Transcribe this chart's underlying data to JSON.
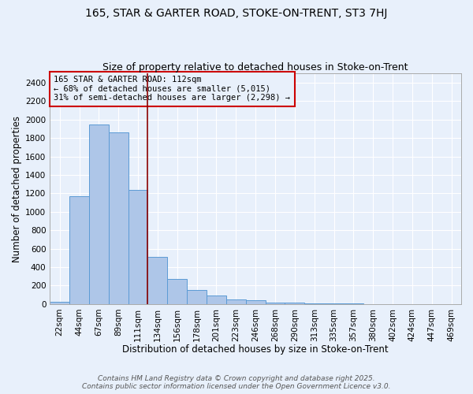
{
  "title": "165, STAR & GARTER ROAD, STOKE-ON-TRENT, ST3 7HJ",
  "subtitle": "Size of property relative to detached houses in Stoke-on-Trent",
  "xlabel": "Distribution of detached houses by size in Stoke-on-Trent",
  "ylabel": "Number of detached properties",
  "bin_labels": [
    "22sqm",
    "44sqm",
    "67sqm",
    "89sqm",
    "111sqm",
    "134sqm",
    "156sqm",
    "178sqm",
    "201sqm",
    "223sqm",
    "246sqm",
    "268sqm",
    "290sqm",
    "313sqm",
    "335sqm",
    "357sqm",
    "380sqm",
    "402sqm",
    "424sqm",
    "447sqm",
    "469sqm"
  ],
  "bar_heights": [
    25,
    1170,
    1950,
    1860,
    1240,
    510,
    270,
    155,
    90,
    50,
    40,
    20,
    15,
    10,
    5,
    3,
    2,
    2,
    1,
    1,
    0
  ],
  "bar_color": "#aec6e8",
  "bar_edge_color": "#5b9bd5",
  "ylim": [
    0,
    2500
  ],
  "yticks": [
    0,
    200,
    400,
    600,
    800,
    1000,
    1200,
    1400,
    1600,
    1800,
    2000,
    2200,
    2400
  ],
  "subject_line_bin_index": 4,
  "subject_line_color": "#8b0000",
  "annotation_text": "165 STAR & GARTER ROAD: 112sqm\n← 68% of detached houses are smaller (5,015)\n31% of semi-detached houses are larger (2,298) →",
  "annotation_box_color": "#cc0000",
  "footer_line1": "Contains HM Land Registry data © Crown copyright and database right 2025.",
  "footer_line2": "Contains public sector information licensed under the Open Government Licence v3.0.",
  "bg_color": "#e8f0fb",
  "grid_color": "#ffffff",
  "title_fontsize": 10,
  "subtitle_fontsize": 9,
  "label_fontsize": 8.5,
  "tick_fontsize": 7.5,
  "footer_fontsize": 6.5
}
